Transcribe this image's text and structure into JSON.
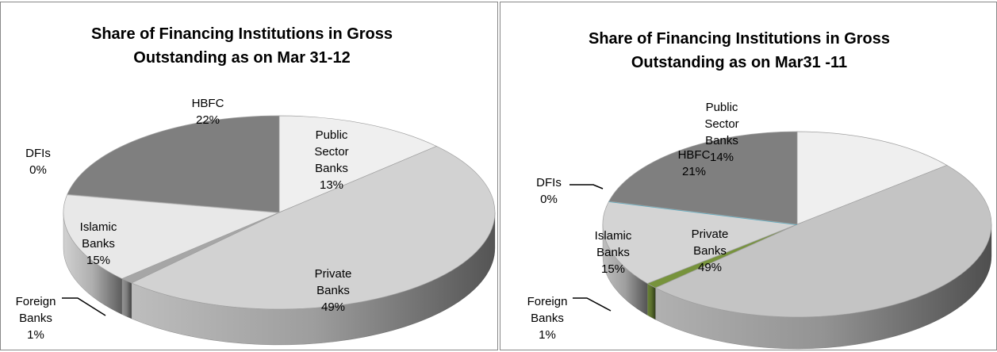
{
  "chart_data": [
    {
      "type": "pie3d",
      "title": "Share of Financing Institutions in Gross Outstanding as on Mar 31-12",
      "categories": [
        "Public Sector Banks",
        "Private Banks",
        "Foreign Banks",
        "Islamic Banks",
        "DFIs",
        "HBFC"
      ],
      "values": [
        13,
        49,
        1,
        15,
        0,
        22
      ],
      "value_labels": [
        "13%",
        "49%",
        "1%",
        "15%",
        "0%",
        "22%"
      ],
      "colors": [
        "#efefef",
        "#d2d2d2",
        "#a6a6a6",
        "#e8e8e8",
        "#bfbfbf",
        "#7f7f7f"
      ]
    },
    {
      "type": "pie3d",
      "title": "Share  of Financing Institutions in Gross Outstanding as on Mar31 -11",
      "categories": [
        "Public Sector Banks",
        "Private Banks",
        "Foreign Banks",
        "Islamic Banks",
        "DFIs",
        "HBFC"
      ],
      "values": [
        14,
        49,
        1,
        15,
        0,
        21
      ],
      "value_labels": [
        "14%",
        "49%",
        "1%",
        "15%",
        "0%",
        "21%"
      ],
      "colors": [
        "#efefef",
        "#c4c4c4",
        "#77933c",
        "#d4d4d4",
        "#4bacc6",
        "#7f7f7f"
      ]
    }
  ]
}
